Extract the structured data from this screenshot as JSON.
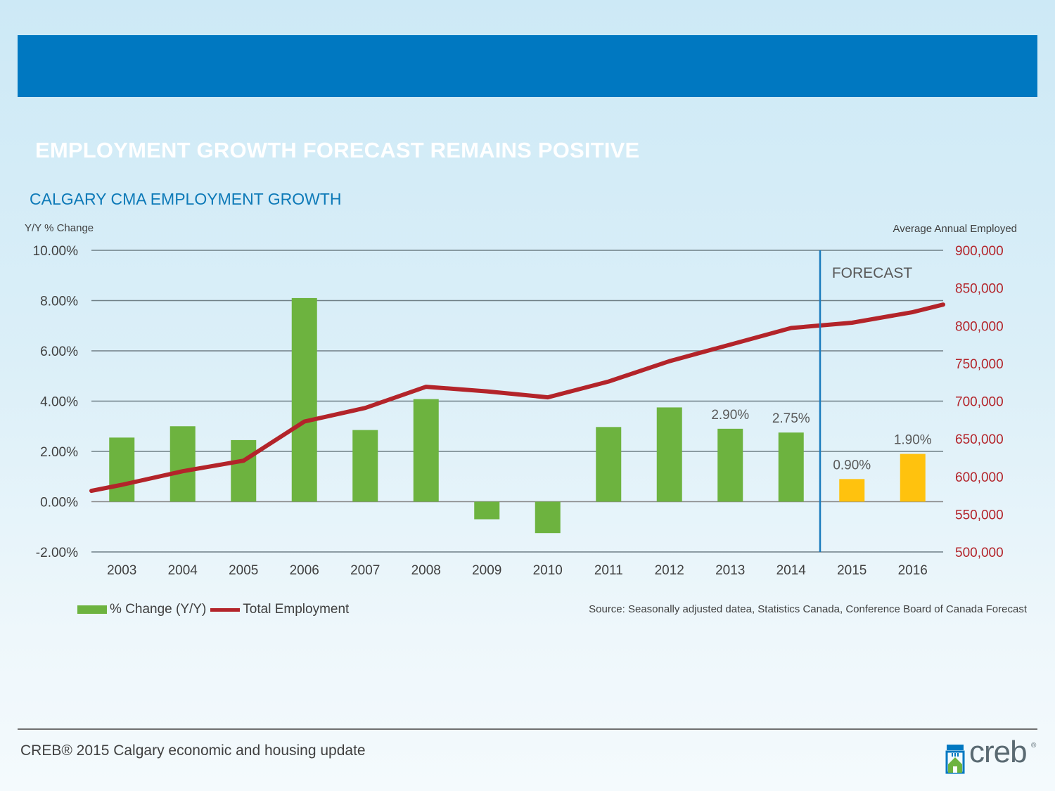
{
  "slide": {
    "title": "EMPLOYMENT GROWTH FORECAST REMAINS POSITIVE",
    "footer": "CREB® 2015 Calgary economic and housing update",
    "logo": {
      "text": "creb",
      "reg": "®"
    }
  },
  "chart_data": {
    "type": "bar+line",
    "title": "CALGARY CMA EMPLOYMENT GROWTH",
    "left_axis": {
      "label": "Y/Y % Change",
      "ylim": [
        -2,
        10
      ],
      "ticks": [
        "10.00%",
        "8.00%",
        "6.00%",
        "4.00%",
        "2.00%",
        "0.00%",
        "-2.00%"
      ],
      "tick_values": [
        10,
        8,
        6,
        4,
        2,
        0,
        -2
      ]
    },
    "right_axis": {
      "label": "Average Annual Employed",
      "ylim": [
        500000,
        900000
      ],
      "ticks": [
        "900,000",
        "850,000",
        "800,000",
        "750,000",
        "700,000",
        "650,000",
        "600,000",
        "550,000",
        "500,000"
      ],
      "tick_values": [
        900000,
        850000,
        800000,
        750000,
        700000,
        650000,
        600000,
        550000,
        500000
      ],
      "color": "#b3242a"
    },
    "categories": [
      "2003",
      "2004",
      "2005",
      "2006",
      "2007",
      "2008",
      "2009",
      "2010",
      "2011",
      "2012",
      "2013",
      "2014",
      "2015",
      "2016"
    ],
    "series": [
      {
        "name": "% Change (Y/Y)",
        "kind": "bar",
        "values": [
          2.55,
          3.0,
          2.45,
          8.1,
          2.85,
          4.08,
          -0.7,
          -1.25,
          2.97,
          3.75,
          2.9,
          2.75,
          0.9,
          1.9
        ],
        "color": "#6db33f",
        "forecast_color": "#ffc20e"
      },
      {
        "name": "Total Employment",
        "kind": "line",
        "axis": "right",
        "values": [
          589000,
          607000,
          621000,
          673000,
          691000,
          719000,
          713000,
          705000,
          726000,
          753000,
          775000,
          797000,
          804000,
          818000
        ],
        "line_start": 581000,
        "line_end": 828000,
        "color": "#b3242a"
      }
    ],
    "data_labels": [
      {
        "index": 10,
        "text": "2.90%"
      },
      {
        "index": 11,
        "text": "2.75%"
      },
      {
        "index": 12,
        "text": "0.90%"
      },
      {
        "index": 13,
        "text": "1.90%"
      }
    ],
    "forecast": {
      "label": "FORECAST",
      "start_index": 12
    },
    "grid": true,
    "legend": {
      "placement": "bottom-left",
      "items": [
        {
          "label": "% Change (Y/Y)",
          "color": "#6db33f"
        },
        {
          "label": "Total Employment",
          "color": "#b3242a"
        }
      ]
    },
    "source": "Source: Seasonally adjusted datea, Statistics Canada, Conference Board of Canada Forecast"
  }
}
